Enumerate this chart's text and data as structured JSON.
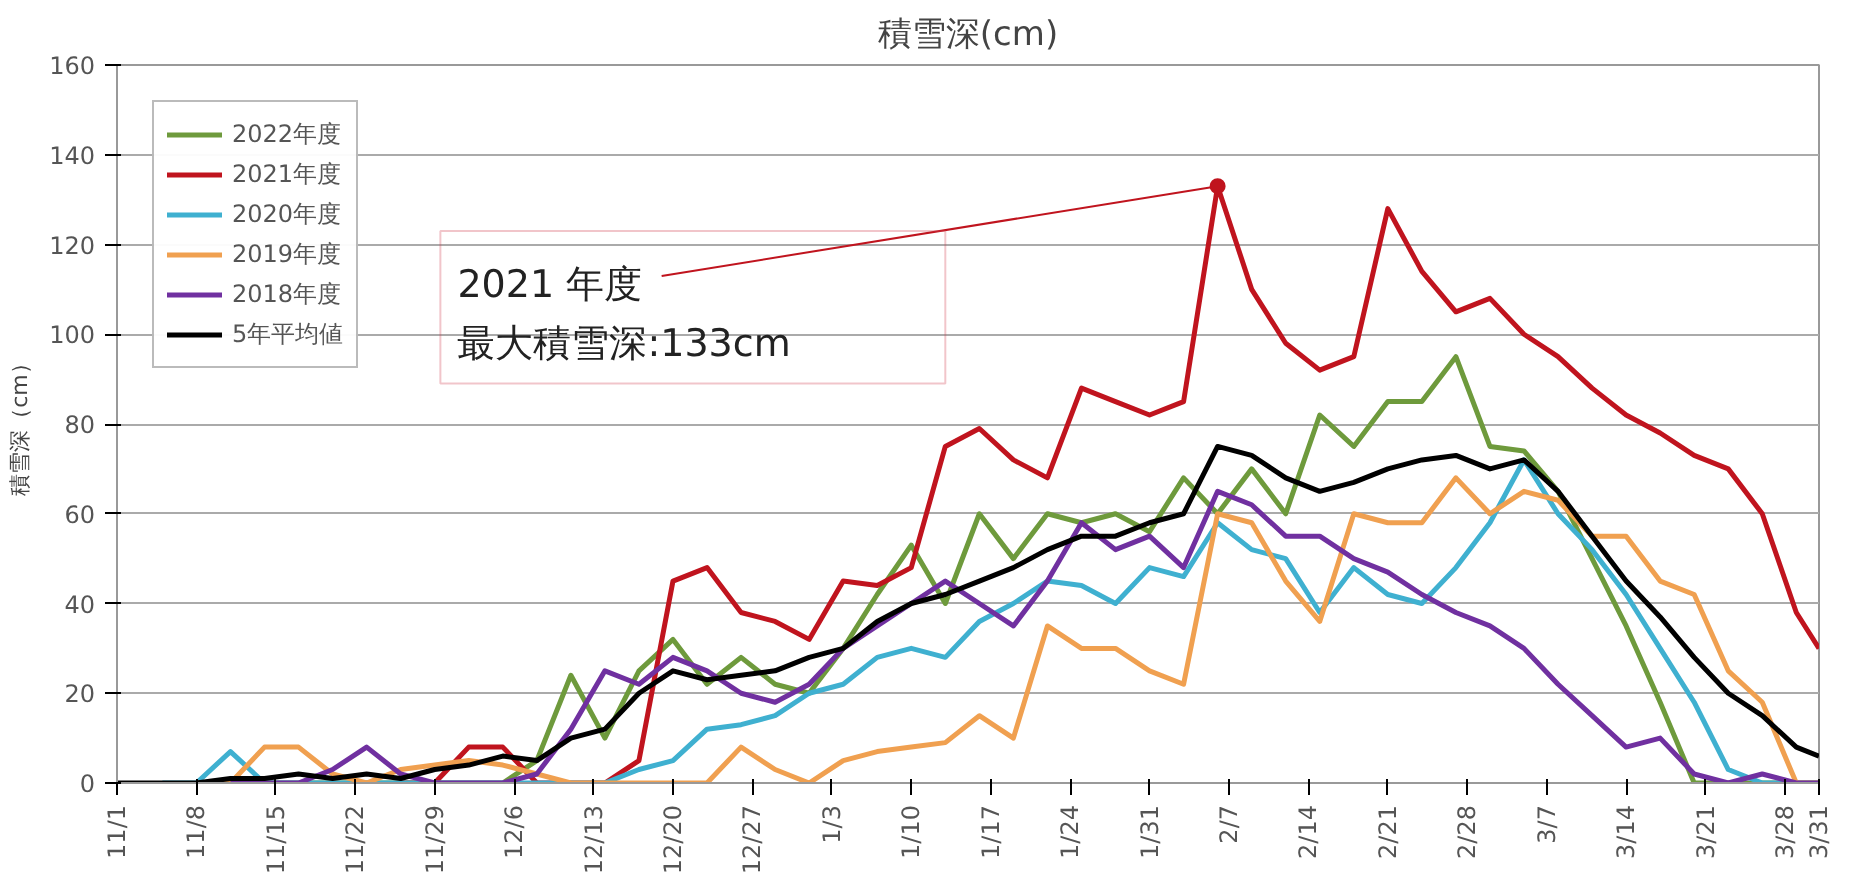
{
  "chart_data": {
    "type": "line",
    "title": "積雪深(cm)",
    "ylabel": "積雪深（cm）",
    "x": [
      "2022-11-01",
      "2022-11-02",
      "2022-11-05",
      "2022-11-08",
      "2022-11-11",
      "2022-11-14",
      "2022-11-17",
      "2022-11-20",
      "2022-11-23",
      "2022-11-26",
      "2022-11-29",
      "2022-12-02",
      "2022-12-05",
      "2022-12-08",
      "2022-12-11",
      "2022-12-14",
      "2022-12-17",
      "2022-12-20",
      "2022-12-23",
      "2022-12-26",
      "2022-12-29",
      "2023-01-01",
      "2023-01-04",
      "2023-01-07",
      "2023-01-10",
      "2023-01-13",
      "2023-01-16",
      "2023-01-19",
      "2023-01-22",
      "2023-01-25",
      "2023-01-28",
      "2023-01-31",
      "2023-02-03",
      "2023-02-06",
      "2023-02-09",
      "2023-02-12",
      "2023-02-15",
      "2023-02-18",
      "2023-02-21",
      "2023-02-24",
      "2023-02-27",
      "2023-03-02",
      "2023-03-05",
      "2023-03-08",
      "2023-03-11",
      "2023-03-14",
      "2023-03-17",
      "2023-03-20",
      "2023-03-23",
      "2023-03-26",
      "2023-03-29",
      "2023-03-31"
    ],
    "series": [
      {
        "name": "2022年度",
        "color": "#6e9a3c",
        "values": [
          null,
          null,
          null,
          0,
          0,
          0,
          0,
          0,
          0,
          0,
          0,
          0,
          0,
          5,
          24,
          10,
          25,
          32,
          22,
          28,
          22,
          20,
          30,
          42,
          53,
          40,
          60,
          50,
          60,
          58,
          60,
          56,
          68,
          60,
          70,
          60,
          82,
          75,
          85,
          85,
          95,
          75,
          74,
          65,
          50,
          35,
          18,
          0,
          0,
          0,
          0,
          0
        ]
      },
      {
        "name": "2021年度",
        "color": "#c0141e",
        "values": [
          null,
          null,
          null,
          null,
          null,
          null,
          null,
          null,
          null,
          0,
          0,
          8,
          8,
          0,
          0,
          0,
          5,
          45,
          48,
          38,
          36,
          32,
          45,
          44,
          48,
          75,
          79,
          72,
          68,
          88,
          85,
          82,
          85,
          133,
          110,
          98,
          92,
          95,
          128,
          114,
          105,
          108,
          100,
          95,
          88,
          82,
          78,
          73,
          70,
          60,
          38,
          30
        ]
      },
      {
        "name": "2020年度",
        "color": "#3fb0d0",
        "values": [
          null,
          null,
          0,
          0,
          7,
          0,
          0,
          0,
          0,
          0,
          0,
          0,
          0,
          0,
          0,
          0,
          3,
          5,
          12,
          13,
          15,
          20,
          22,
          28,
          30,
          28,
          36,
          40,
          45,
          44,
          40,
          48,
          46,
          58,
          52,
          50,
          38,
          48,
          42,
          40,
          48,
          58,
          72,
          60,
          52,
          42,
          30,
          18,
          3,
          0,
          0,
          0
        ]
      },
      {
        "name": "2019年度",
        "color": "#f0a050",
        "values": [
          null,
          null,
          null,
          0,
          0,
          8,
          8,
          2,
          0,
          3,
          4,
          5,
          4,
          2,
          0,
          0,
          0,
          0,
          0,
          8,
          3,
          0,
          5,
          7,
          8,
          9,
          15,
          10,
          35,
          30,
          30,
          25,
          22,
          60,
          58,
          45,
          36,
          60,
          58,
          58,
          68,
          60,
          65,
          63,
          55,
          55,
          45,
          42,
          25,
          18,
          0,
          0
        ]
      },
      {
        "name": "2018年度",
        "color": "#7030a0",
        "values": [
          null,
          null,
          null,
          null,
          0,
          0,
          0,
          3,
          8,
          2,
          0,
          0,
          0,
          2,
          12,
          25,
          22,
          28,
          25,
          20,
          18,
          22,
          30,
          35,
          40,
          45,
          40,
          35,
          45,
          58,
          52,
          55,
          48,
          65,
          62,
          55,
          55,
          50,
          47,
          42,
          38,
          35,
          30,
          22,
          15,
          8,
          10,
          2,
          0,
          2,
          0,
          0
        ]
      },
      {
        "name": "5年平均値",
        "color": "#000000",
        "values": [
          0,
          0,
          0,
          0,
          1,
          1,
          2,
          1,
          2,
          1,
          3,
          4,
          6,
          5,
          10,
          12,
          20,
          25,
          23,
          24,
          25,
          28,
          30,
          36,
          40,
          42,
          45,
          48,
          52,
          55,
          55,
          58,
          60,
          75,
          73,
          68,
          65,
          67,
          70,
          72,
          73,
          70,
          72,
          65,
          55,
          45,
          37,
          28,
          20,
          15,
          8,
          6
        ]
      }
    ],
    "ylim": [
      0,
      160
    ],
    "yticks": [
      0,
      20,
      40,
      60,
      80,
      100,
      120,
      140,
      160
    ],
    "xlim": [
      "2022-11-01",
      "2023-03-31"
    ],
    "xticks": [
      {
        "value": "2022-11-01",
        "label": "11/1"
      },
      {
        "value": "2022-11-08",
        "label": "11/8"
      },
      {
        "value": "2022-11-15",
        "label": "11/15"
      },
      {
        "value": "2022-11-22",
        "label": "11/22"
      },
      {
        "value": "2022-11-29",
        "label": "11/29"
      },
      {
        "value": "2022-12-06",
        "label": "12/6"
      },
      {
        "value": "2022-12-13",
        "label": "12/13"
      },
      {
        "value": "2022-12-20",
        "label": "12/20"
      },
      {
        "value": "2022-12-27",
        "label": "12/27"
      },
      {
        "value": "2023-01-03",
        "label": "1/3"
      },
      {
        "value": "2023-01-10",
        "label": "1/10"
      },
      {
        "value": "2023-01-17",
        "label": "1/17"
      },
      {
        "value": "2023-01-24",
        "label": "1/24"
      },
      {
        "value": "2023-01-31",
        "label": "1/31"
      },
      {
        "value": "2023-02-07",
        "label": "2/7"
      },
      {
        "value": "2023-02-14",
        "label": "2/14"
      },
      {
        "value": "2023-02-21",
        "label": "2/21"
      },
      {
        "value": "2023-02-28",
        "label": "2/28"
      },
      {
        "value": "2023-03-07",
        "label": "3/7"
      },
      {
        "value": "2023-03-14",
        "label": "3/14"
      },
      {
        "value": "2023-03-21",
        "label": "3/21"
      },
      {
        "value": "2023-03-28",
        "label": "3/28"
      },
      {
        "value": "2023-03-31",
        "label": "3/31"
      }
    ],
    "annotations": [
      {
        "text": "2021 年度",
        "x": "2023-02-06",
        "y": 133
      },
      "最大積雪深:133cm"
    ],
    "grid": "y",
    "legend": "top left",
    "marker": "none",
    "line_style": "solid"
  }
}
